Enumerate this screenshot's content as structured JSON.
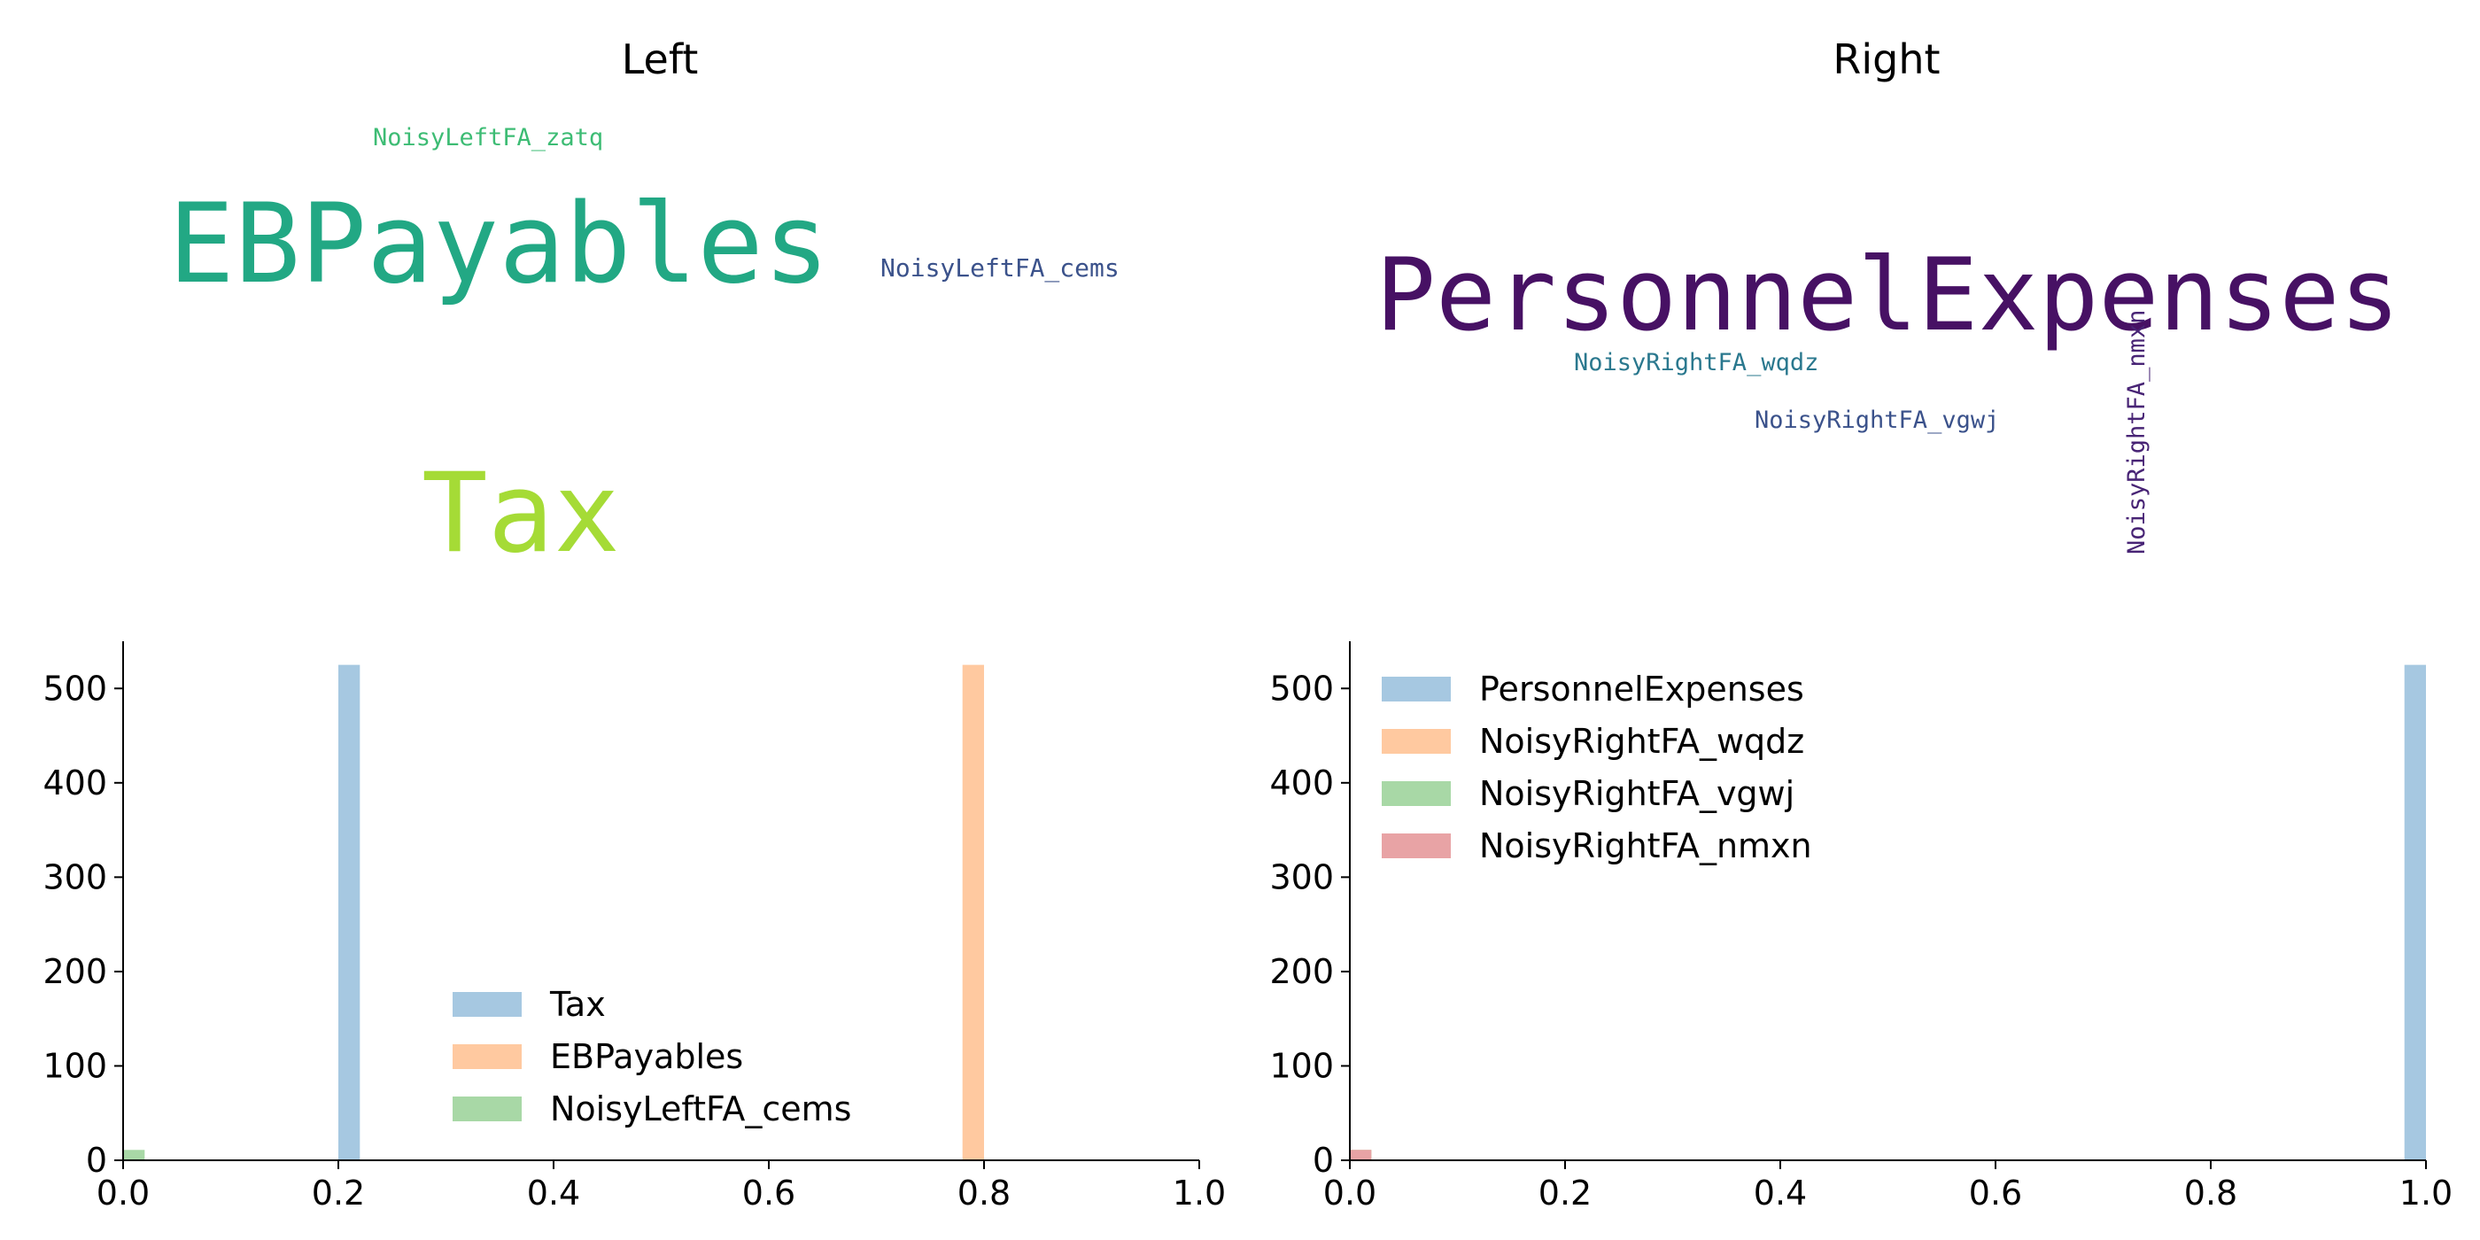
{
  "chart_data": [
    {
      "type": "wordcloud",
      "title": "Left",
      "words": [
        {
          "text": "NoisyLeftFA_zatq",
          "color": "#3dbc74"
        },
        {
          "text": "EBPayables",
          "color": "#22a884"
        },
        {
          "text": "NoisyLeftFA_cems",
          "color": "#3b528b"
        },
        {
          "text": "Tax",
          "color": "#a5db36"
        }
      ]
    },
    {
      "type": "wordcloud",
      "title": "Right",
      "words": [
        {
          "text": "PersonnelExpenses",
          "color": "#471164"
        },
        {
          "text": "NoisyRightFA_wqdz",
          "color": "#2a788e"
        },
        {
          "text": "NoisyRightFA_vgwj",
          "color": "#3b528b"
        },
        {
          "text": "NoisyRightFA_nmxn",
          "color": "#482475"
        }
      ]
    },
    {
      "type": "bar",
      "histogram": true,
      "xlim": [
        0,
        1
      ],
      "ylim": [
        0,
        550
      ],
      "xticks": [
        "0.0",
        "0.2",
        "0.4",
        "0.6",
        "0.8",
        "1.0"
      ],
      "yticks": [
        "0",
        "100",
        "200",
        "300",
        "400",
        "500"
      ],
      "bin_width": 0.02,
      "legend_position": "lower-center",
      "series": [
        {
          "name": "Tax",
          "color": "#a6c8e1",
          "bins": [
            {
              "x": 0.2,
              "count": 525
            }
          ]
        },
        {
          "name": "EBPayables",
          "color": "#ffc9a0",
          "bins": [
            {
              "x": 0.78,
              "count": 525
            }
          ]
        },
        {
          "name": "NoisyLeftFA_cems",
          "color": "#a8d8a6",
          "bins": [
            {
              "x": 0.0,
              "count": 11
            }
          ]
        }
      ]
    },
    {
      "type": "bar",
      "histogram": true,
      "xlim": [
        0,
        1
      ],
      "ylim": [
        0,
        550
      ],
      "xticks": [
        "0.0",
        "0.2",
        "0.4",
        "0.6",
        "0.8",
        "1.0"
      ],
      "yticks": [
        "0",
        "100",
        "200",
        "300",
        "400",
        "500"
      ],
      "bin_width": 0.02,
      "legend_position": "upper-left",
      "series": [
        {
          "name": "PersonnelExpenses",
          "color": "#a6c8e1",
          "bins": [
            {
              "x": 0.98,
              "count": 525
            }
          ]
        },
        {
          "name": "NoisyRightFA_wqdz",
          "color": "#ffc9a0",
          "bins": [
            {
              "x": 0.0,
              "count": 11
            }
          ]
        },
        {
          "name": "NoisyRightFA_vgwj",
          "color": "#a8d8a6",
          "bins": [
            {
              "x": 0.0,
              "count": 11
            }
          ]
        },
        {
          "name": "NoisyRightFA_nmxn",
          "color": "#e8a3a5",
          "bins": [
            {
              "x": 0.0,
              "count": 11
            }
          ]
        }
      ]
    }
  ]
}
